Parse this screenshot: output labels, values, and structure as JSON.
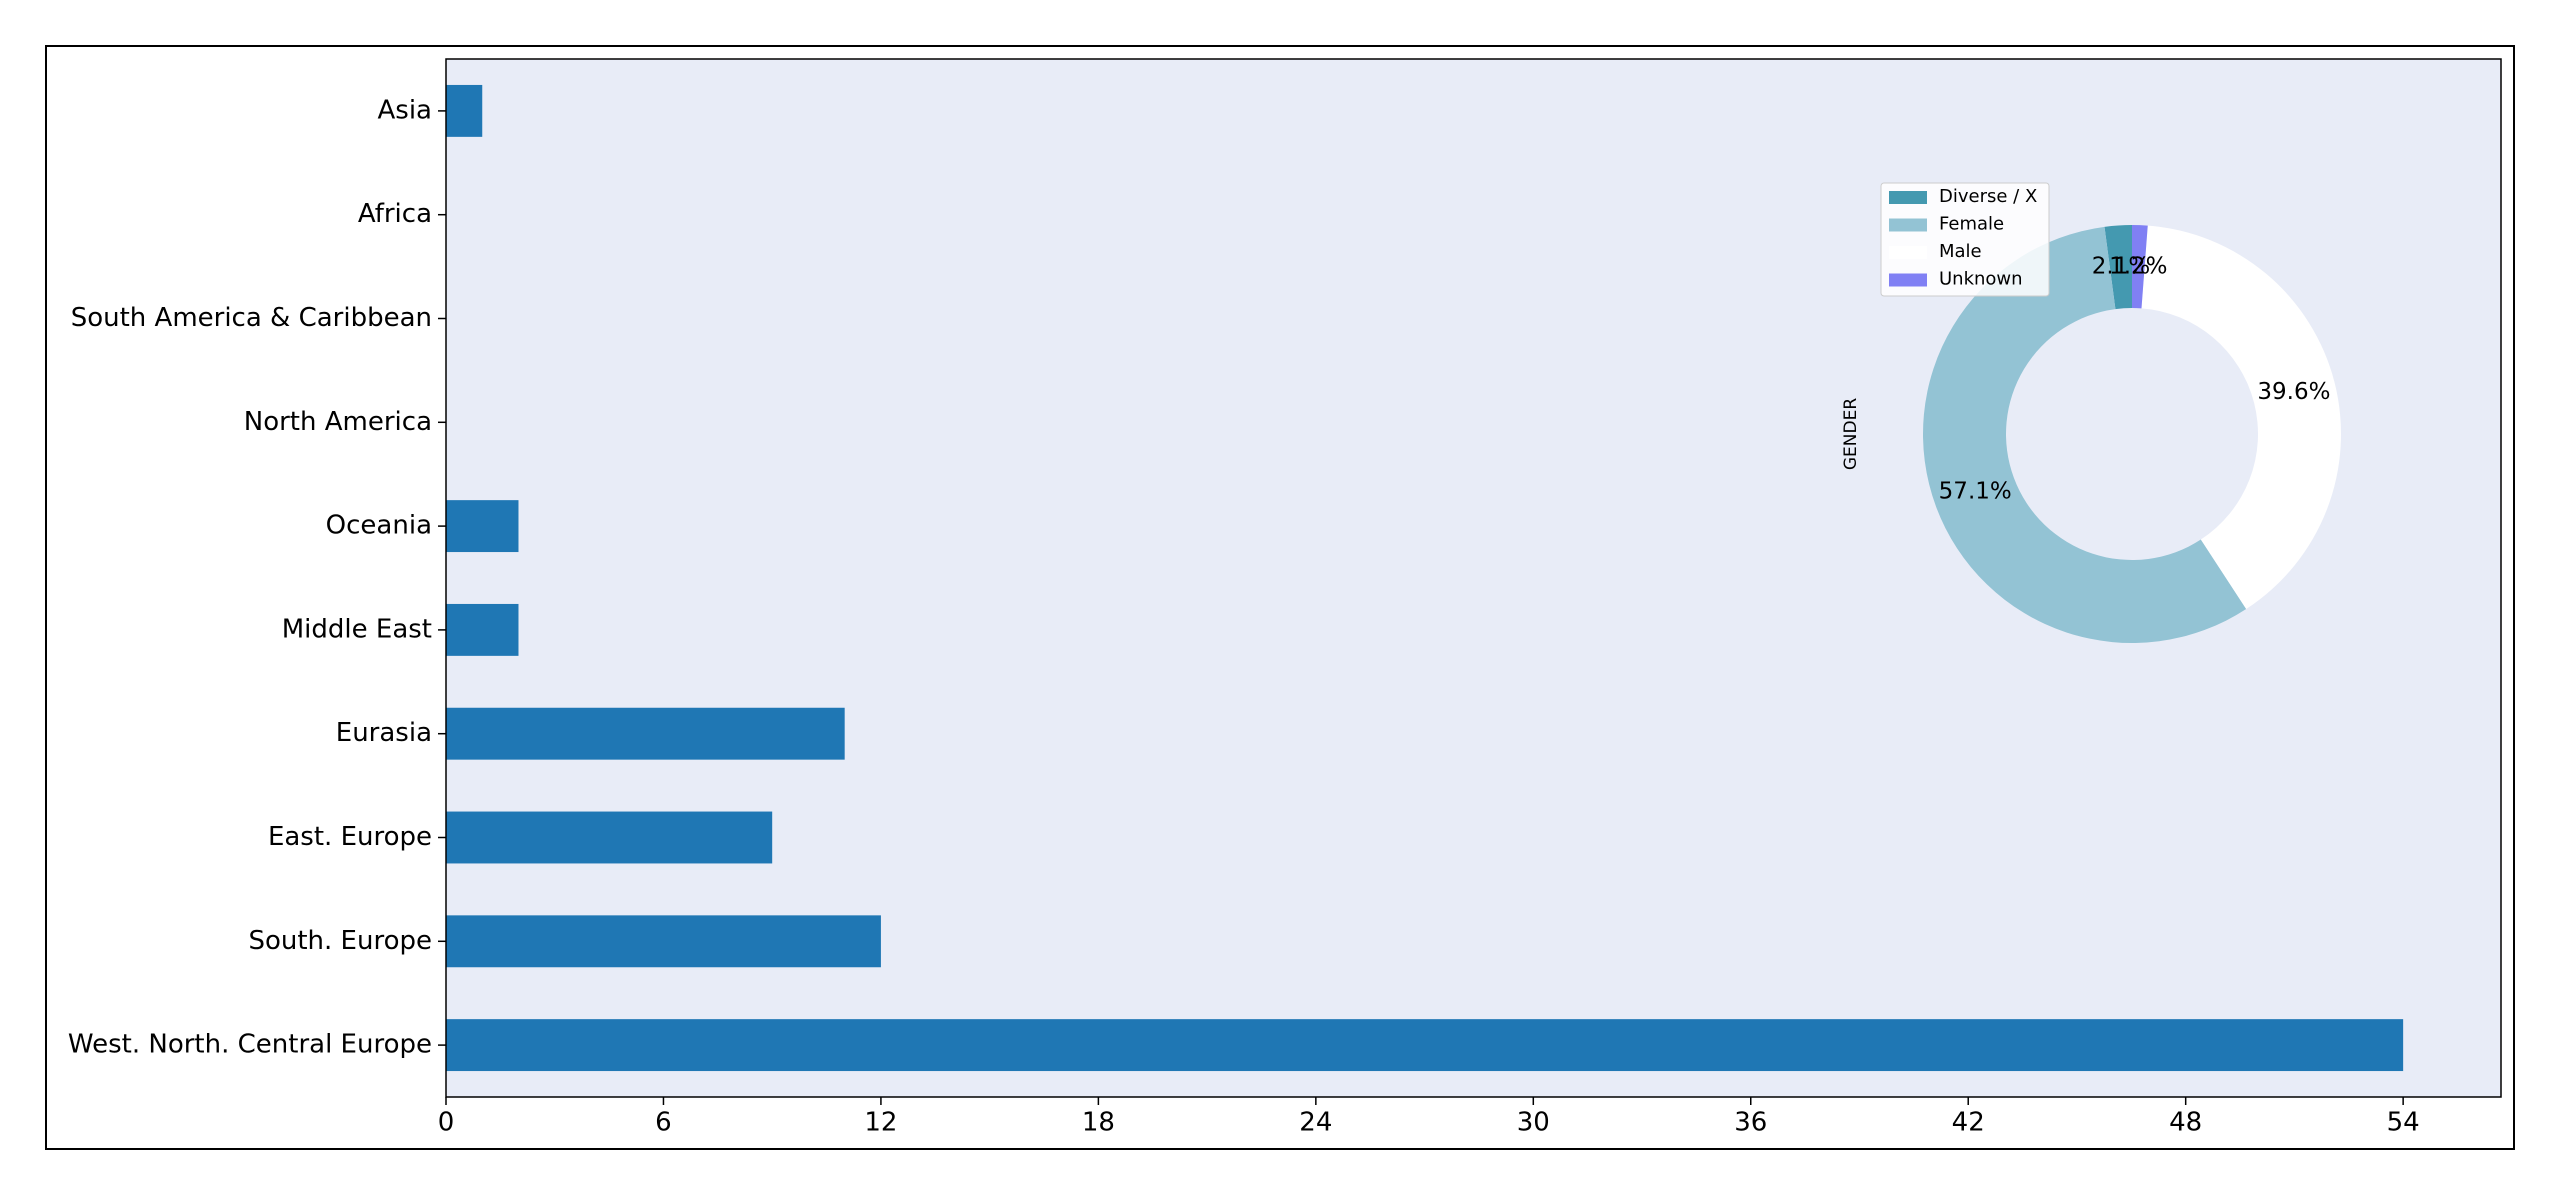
{
  "chart_data": [
    {
      "type": "bar",
      "orientation": "horizontal",
      "categories": [
        "Asia",
        "Africa",
        "South America & Caribbean",
        "North America",
        "Oceania",
        "Middle East",
        "Eurasia",
        "East. Europe",
        "South. Europe",
        "West. North. Central Europe"
      ],
      "values": [
        1,
        0,
        0,
        0,
        2,
        2,
        11,
        9,
        12,
        54
      ],
      "color": "#1f77b4",
      "background": "#e8ecf7",
      "xlim": [
        0,
        56.7
      ],
      "xticks": [
        0,
        6,
        12,
        18,
        24,
        30,
        36,
        42,
        48,
        54
      ]
    },
    {
      "type": "pie",
      "ylabel": "GENDER",
      "donut": true,
      "categories": [
        "Diverse / X",
        "Female",
        "Male",
        "Unknown"
      ],
      "values": [
        2.1,
        57.1,
        39.6,
        1.2
      ],
      "value_labels": [
        "2.1%",
        "57.1%",
        "39.6%",
        "1.2%"
      ],
      "colors": [
        "#4499b0",
        "#93c3d4",
        "#ffffff",
        "#8080f4"
      ],
      "legend": "upper left"
    }
  ]
}
